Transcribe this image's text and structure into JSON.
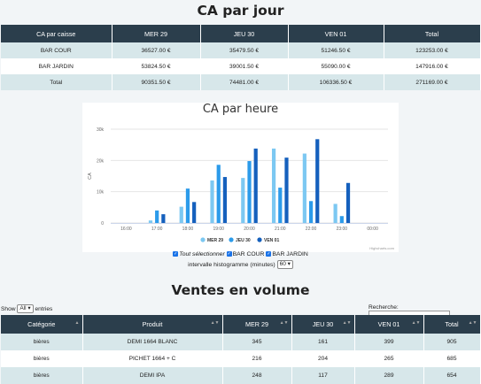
{
  "ca_jour": {
    "title": "CA par jour",
    "headers": [
      "CA par caisse",
      "MER 29",
      "JEU 30",
      "VEN 01",
      "Total"
    ],
    "rows": [
      [
        "BAR COUR",
        "36527.00 €",
        "35479.50 €",
        "51246.50 €",
        "123253.00 €"
      ],
      [
        "BAR JARDIN",
        "53824.50 €",
        "39001.50 €",
        "55090.00 €",
        "147916.00 €"
      ],
      [
        "Total",
        "90351.50 €",
        "74481.00 €",
        "106336.50 €",
        "271169.00 €"
      ]
    ]
  },
  "chart_data": {
    "type": "bar",
    "title": "CA par heure",
    "ylabel": "CA",
    "xlabel": "",
    "categories": [
      "16:00",
      "17:00",
      "18:00",
      "19:00",
      "20:00",
      "21:00",
      "22:00",
      "23:00",
      "00:00"
    ],
    "series": [
      {
        "name": "MER 29",
        "color": "#7cc8f2",
        "values": [
          0,
          800,
          5200,
          13600,
          14400,
          23800,
          22200,
          6100,
          0
        ]
      },
      {
        "name": "JEU 30",
        "color": "#2c9bea",
        "values": [
          0,
          4000,
          11000,
          18600,
          19800,
          11300,
          7000,
          2200,
          0
        ]
      },
      {
        "name": "VEN 01",
        "color": "#1560bd",
        "values": [
          0,
          2800,
          6700,
          14700,
          23800,
          20900,
          26800,
          12800,
          0
        ]
      }
    ],
    "yticks": [
      "0",
      "10k",
      "20k",
      "30k"
    ],
    "ylim": [
      0,
      30000
    ],
    "legend": "bottom",
    "credit": "Highcharts.com"
  },
  "controls": {
    "select_all_label": "Tout sélectionner",
    "bar_cour_label": "BAR COUR",
    "bar_jardin_label": "BAR JARDIN",
    "interval_label": "intervalle histogramme (minutes)",
    "interval_value": "60"
  },
  "volume": {
    "title": "Ventes en volume",
    "show_label": "Show",
    "show_value": "All",
    "entries_label": "entries",
    "search_label": "Recherche:",
    "headers": [
      "Catégorie",
      "Produit",
      "MER 29",
      "JEU 30",
      "VEN 01",
      "Total"
    ],
    "rows": [
      [
        "bières",
        "DEMI 1664 BLANC",
        "345",
        "161",
        "399",
        "905"
      ],
      [
        "bières",
        "PICHET 1664 + C",
        "216",
        "204",
        "265",
        "685"
      ],
      [
        "bières",
        "DEMI IPA",
        "248",
        "117",
        "289",
        "654"
      ]
    ]
  }
}
